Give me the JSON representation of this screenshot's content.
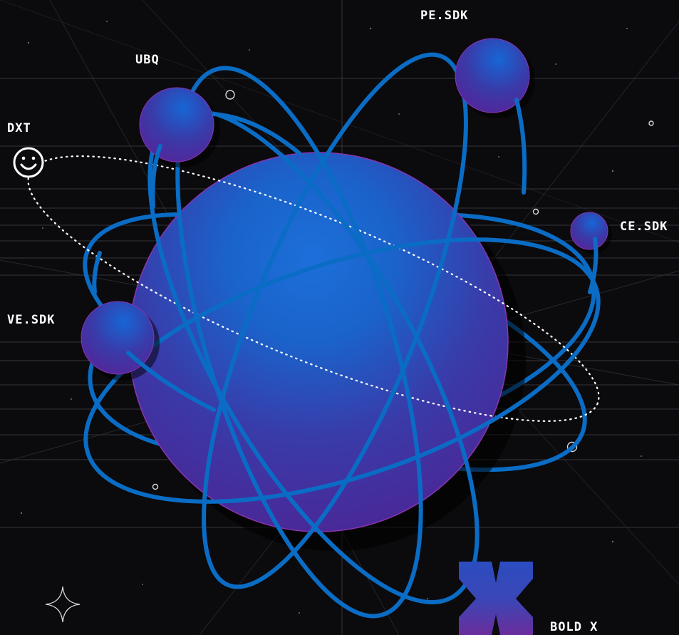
{
  "diagram": {
    "nodes": [
      {
        "id": "pe-sdk",
        "label": "PE.SDK"
      },
      {
        "id": "ubq",
        "label": "UBQ"
      },
      {
        "id": "dxt",
        "label": "DXT",
        "icon": "smiley-face-icon"
      },
      {
        "id": "ce-sdk",
        "label": "CE.SDK"
      },
      {
        "id": "ve-sdk",
        "label": "VE.SDK"
      },
      {
        "id": "bold-x",
        "label": "BOLD X",
        "icon": "bold-x-logo-icon"
      }
    ]
  },
  "colors": {
    "background": "#0b0a0d",
    "orbit": "#0a6cc4",
    "planet_light": "#1b6fd6",
    "planet_dark": "#4a2593",
    "grid": "#4a4a52",
    "label": "#ffffff"
  }
}
